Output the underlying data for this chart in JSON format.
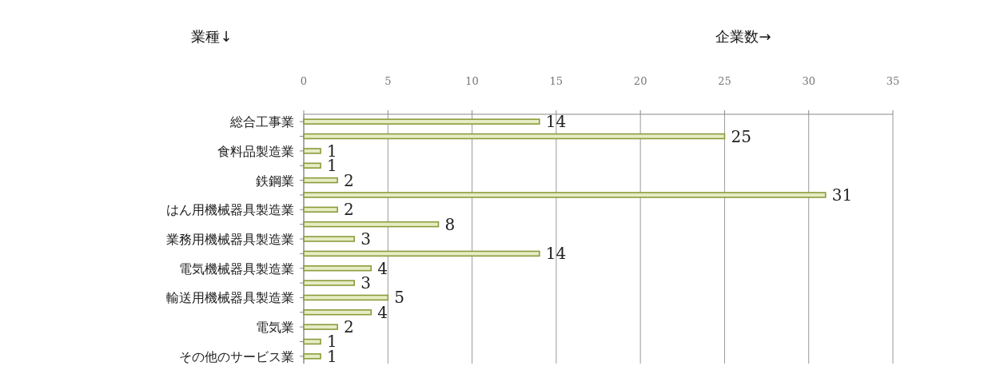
{
  "chart_data": {
    "type": "bar",
    "orientation": "horizontal",
    "xlabel": "企業数→",
    "ylabel": "業種↓",
    "categories": [
      "総合工事業",
      null,
      "食料品製造業",
      null,
      "鉄鋼業",
      null,
      "はん用機械器具製造業",
      null,
      "業務用機械器具製造業",
      null,
      "電気機械器具製造業",
      null,
      "輸送用機械器具製造業",
      null,
      "電気業",
      null,
      "その他のサービス業"
    ],
    "values": [
      14,
      25,
      1,
      1,
      2,
      31,
      2,
      8,
      3,
      14,
      4,
      3,
      5,
      4,
      2,
      1,
      1
    ],
    "color": "#8a9c3c",
    "xlim": [
      0,
      35
    ],
    "xticks": [
      0,
      5,
      10,
      15,
      20,
      25,
      30,
      35
    ],
    "grid": "x",
    "data_labels": true
  }
}
